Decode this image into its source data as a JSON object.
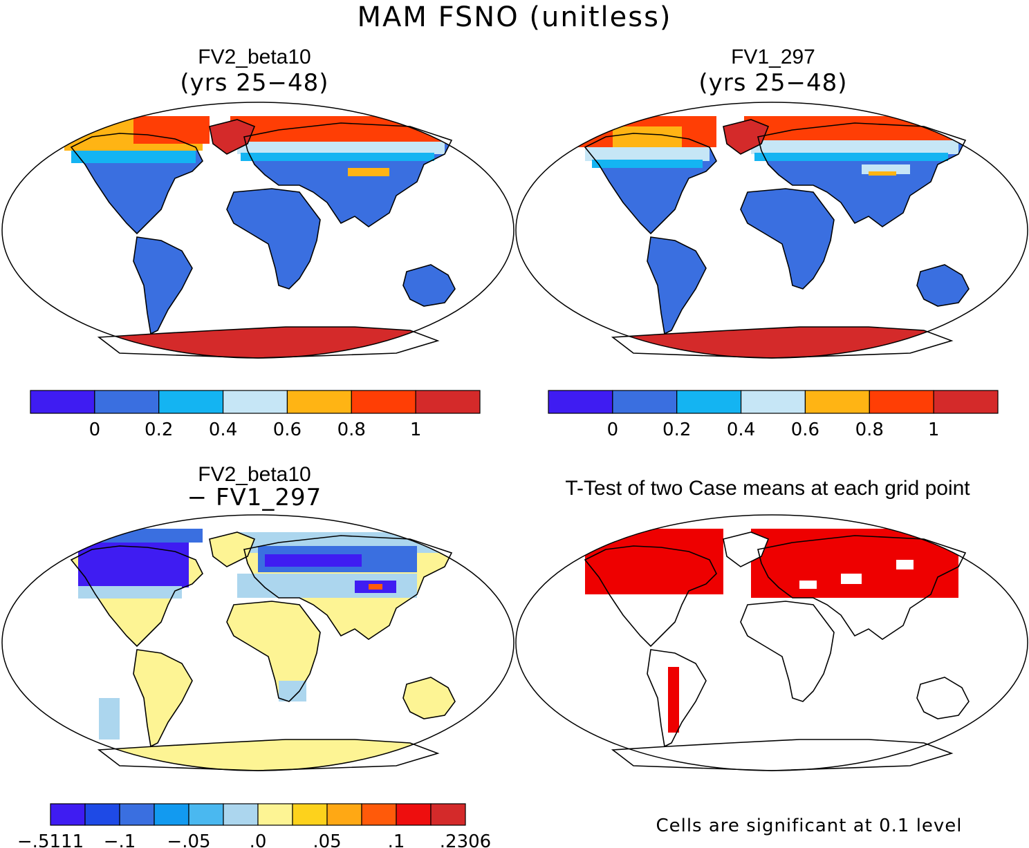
{
  "title": "MAM FSNO (unitless)",
  "panels": [
    {
      "id": "top-left",
      "title": "FV2_beta10",
      "subtitle": "(yrs 25−48)"
    },
    {
      "id": "top-right",
      "title": "FV1_297",
      "subtitle": "(yrs 25−48)"
    },
    {
      "id": "bottom-left",
      "title": "FV2_beta10",
      "subtitle": "− FV1_297"
    },
    {
      "id": "bottom-right",
      "title": "T-Test of two Case means at each grid point",
      "note": "Cells are significant at 0.1 level"
    }
  ],
  "colorbars": {
    "main": {
      "colors": [
        "#3f1cf2",
        "#3a6fe0",
        "#14b4f2",
        "#c6e6f6",
        "#ffb414",
        "#ff3e05",
        "#d42a2a"
      ],
      "labels": [
        "0",
        "0.2",
        "0.4",
        "0.6",
        "0.8",
        "1"
      ]
    },
    "diff": {
      "colors": [
        "#3f1cf2",
        "#1e4ae6",
        "#3a6fe0",
        "#129af0",
        "#4ab8f0",
        "#acd6ee",
        "#fdf494",
        "#fdd21c",
        "#ffa814",
        "#ff5a0a",
        "#ee0e0e",
        "#d42a2a"
      ],
      "labels": [
        "−.5111",
        "−.1",
        "−.05",
        ".0",
        ".05",
        ".1",
        ".2306"
      ]
    }
  },
  "colors": {
    "significance": "#ee0000",
    "ocean": "#ffffff",
    "coast": "#000000"
  }
}
